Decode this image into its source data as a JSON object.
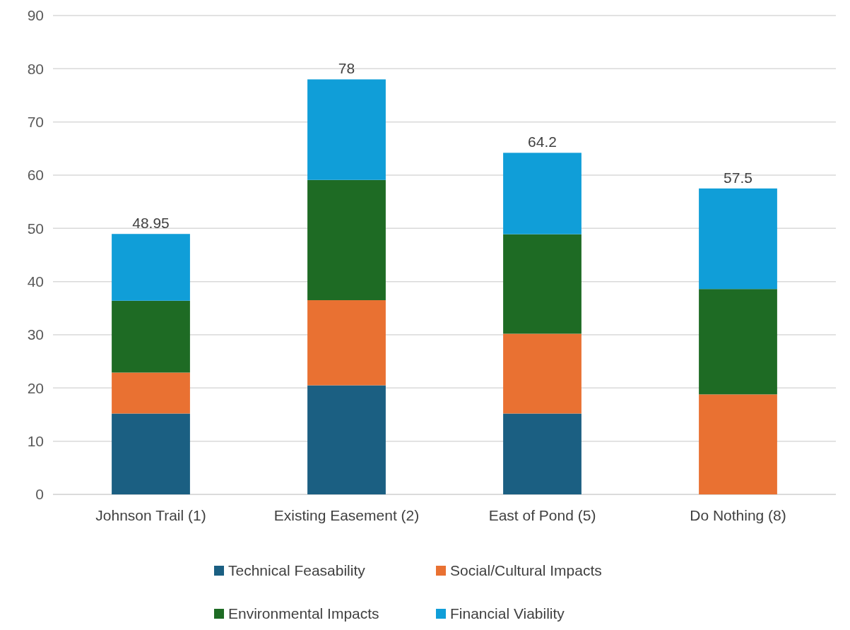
{
  "chart_data": {
    "type": "bar",
    "stacked": true,
    "categories": [
      "Johnson Trail (1)",
      "Existing Easement (2)",
      "East of Pond (5)",
      "Do Nothing (8)"
    ],
    "series": [
      {
        "name": "Technical Feasability",
        "color": "#1b5f82",
        "values": [
          15.2,
          20.5,
          15.2,
          0
        ]
      },
      {
        "name": "Social/Cultural Impacts",
        "color": "#e97132",
        "values": [
          7.7,
          16.0,
          15.0,
          18.8
        ]
      },
      {
        "name": "Environmental Impacts",
        "color": "#1e6b24",
        "values": [
          13.5,
          22.6,
          18.7,
          19.8
        ]
      },
      {
        "name": "Financial Viability",
        "color": "#109ed8",
        "values": [
          12.55,
          18.9,
          15.3,
          18.9
        ]
      }
    ],
    "totals": [
      "48.95",
      "78",
      "64.2",
      "57.5"
    ],
    "ylim": [
      0,
      90
    ],
    "yticks": [
      0,
      10,
      20,
      30,
      40,
      50,
      60,
      70,
      80,
      90
    ],
    "grid": "y",
    "legend": "bottom"
  }
}
